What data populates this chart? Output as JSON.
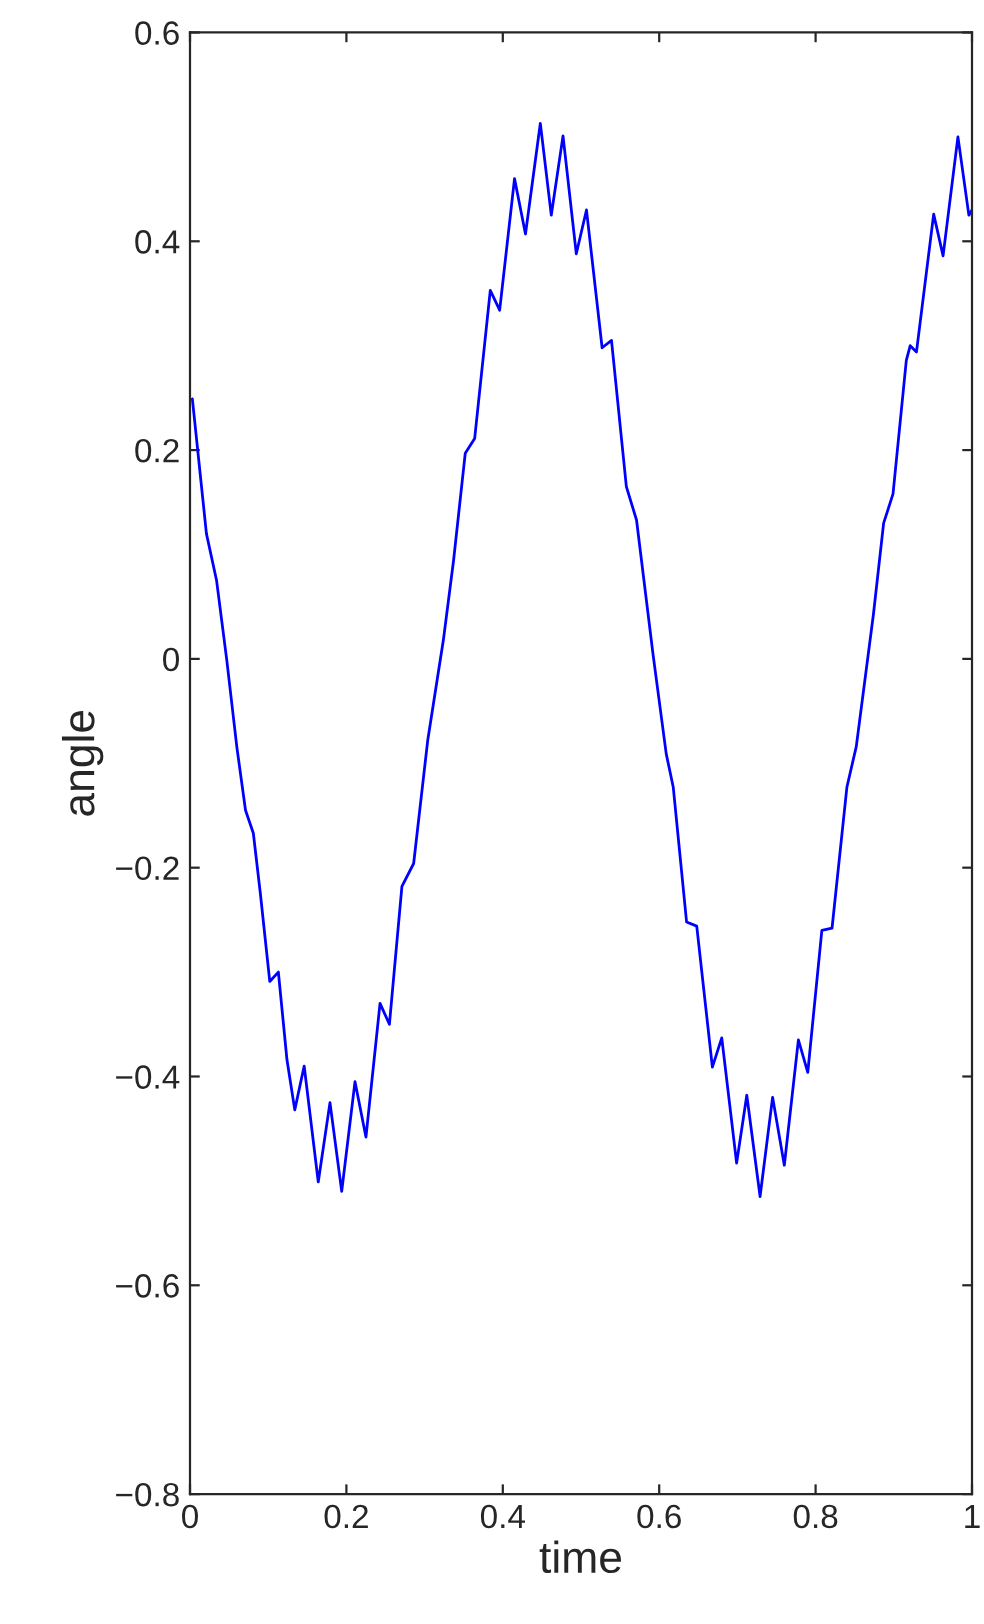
{
  "chart_data": {
    "type": "line",
    "xlabel": "time",
    "ylabel": "angle",
    "xlim": [
      0,
      1
    ],
    "ylim": [
      -0.8,
      0.6
    ],
    "xticks": [
      {
        "value": 0,
        "label": "0"
      },
      0.2,
      0.4,
      0.6,
      0.8,
      {
        "value": 1,
        "label": "1"
      }
    ],
    "yticks": [
      {
        "value": -0.8,
        "label": "−0.8"
      },
      {
        "value": -0.6,
        "label": "−0.6"
      },
      {
        "value": -0.4,
        "label": "−0.4"
      },
      {
        "value": -0.2,
        "label": "−0.2"
      },
      {
        "value": 0,
        "label": "0"
      },
      0.2,
      0.4,
      0.6
    ],
    "grid": false,
    "legend": false,
    "series": [
      {
        "color": "#0000ff",
        "line_style": "solid",
        "x": [
          0.003,
          0.021,
          0.034,
          0.047,
          0.06,
          0.071,
          0.081,
          0.09,
          0.102,
          0.113,
          0.124,
          0.134,
          0.146,
          0.164,
          0.179,
          0.194,
          0.211,
          0.225,
          0.243,
          0.255,
          0.271,
          0.286,
          0.304,
          0.324,
          0.337,
          0.352,
          0.364,
          0.384,
          0.396,
          0.415,
          0.429,
          0.448,
          0.462,
          0.477,
          0.494,
          0.507,
          0.527,
          0.539,
          0.558,
          0.571,
          0.592,
          0.609,
          0.618,
          0.635,
          0.648,
          0.668,
          0.68,
          0.699,
          0.712,
          0.729,
          0.745,
          0.76,
          0.778,
          0.79,
          0.808,
          0.821,
          0.84,
          0.852,
          0.874,
          0.887,
          0.899,
          0.916,
          0.921,
          0.929,
          0.951,
          0.963,
          0.982,
          0.996,
          1.0
        ],
        "values": [
          0.249,
          0.12,
          0.075,
          -0.001,
          -0.085,
          -0.145,
          -0.167,
          -0.225,
          -0.309,
          -0.3,
          -0.384,
          -0.432,
          -0.39,
          -0.501,
          -0.425,
          -0.51,
          -0.405,
          -0.458,
          -0.33,
          -0.35,
          -0.218,
          -0.196,
          -0.078,
          0.018,
          0.094,
          0.197,
          0.211,
          0.353,
          0.334,
          0.46,
          0.407,
          0.513,
          0.425,
          0.501,
          0.388,
          0.43,
          0.298,
          0.305,
          0.165,
          0.133,
          0.005,
          -0.091,
          -0.123,
          -0.252,
          -0.256,
          -0.391,
          -0.363,
          -0.483,
          -0.418,
          -0.515,
          -0.42,
          -0.485,
          -0.365,
          -0.396,
          -0.26,
          -0.258,
          -0.123,
          -0.084,
          0.043,
          0.13,
          0.158,
          0.286,
          0.3,
          0.294,
          0.426,
          0.386,
          0.5,
          0.425,
          0.43
        ]
      }
    ]
  }
}
